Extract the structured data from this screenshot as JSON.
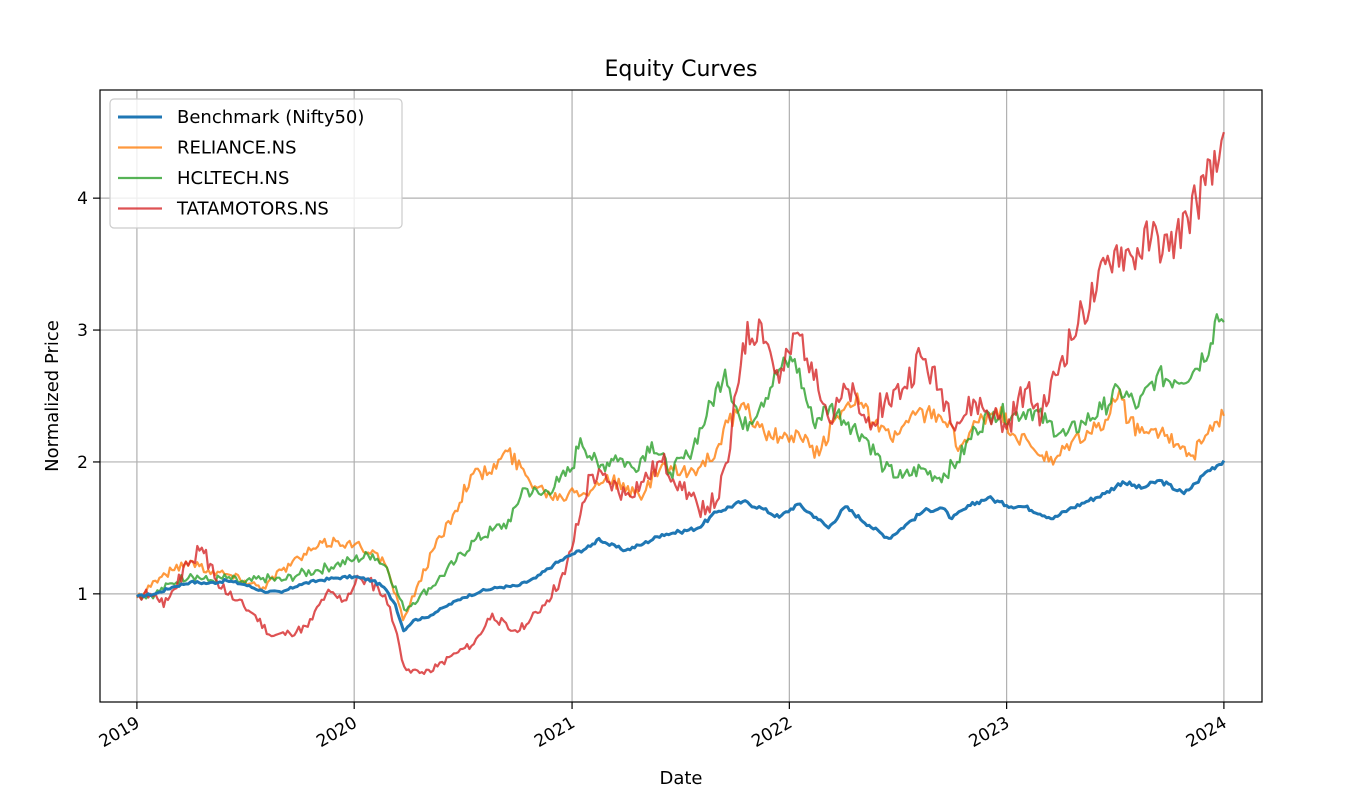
{
  "chart_data": {
    "type": "line",
    "title": "Equity Curves",
    "xlabel": "Date",
    "ylabel": "Normalized Price",
    "xlim": [
      "2018-10-31",
      "2024-03-05"
    ],
    "ylim": [
      0.18,
      4.82
    ],
    "x_ticks": [
      {
        "date": "2019-01-01",
        "label": "2019"
      },
      {
        "date": "2020-01-01",
        "label": "2020"
      },
      {
        "date": "2021-01-01",
        "label": "2021"
      },
      {
        "date": "2022-01-01",
        "label": "2022"
      },
      {
        "date": "2023-01-01",
        "label": "2023"
      },
      {
        "date": "2024-01-01",
        "label": "2024"
      }
    ],
    "y_ticks": [
      1,
      2,
      3,
      4
    ],
    "grid": true,
    "legend_position": "top-left",
    "series": [
      {
        "name": "Benchmark (Nifty50)",
        "color": "#1f77b4",
        "points": [
          [
            "2019-01-01",
            0.98
          ],
          [
            "2019-02-01",
            1.0
          ],
          [
            "2019-03-01",
            1.05
          ],
          [
            "2019-04-01",
            1.09
          ],
          [
            "2019-05-01",
            1.08
          ],
          [
            "2019-06-01",
            1.1
          ],
          [
            "2019-07-01",
            1.07
          ],
          [
            "2019-08-01",
            1.02
          ],
          [
            "2019-09-01",
            1.01
          ],
          [
            "2019-10-01",
            1.07
          ],
          [
            "2019-11-01",
            1.1
          ],
          [
            "2019-12-01",
            1.12
          ],
          [
            "2020-01-01",
            1.13
          ],
          [
            "2020-02-01",
            1.1
          ],
          [
            "2020-02-20",
            1.05
          ],
          [
            "2020-03-10",
            0.92
          ],
          [
            "2020-03-24",
            0.72
          ],
          [
            "2020-04-10",
            0.8
          ],
          [
            "2020-05-01",
            0.82
          ],
          [
            "2020-06-01",
            0.9
          ],
          [
            "2020-07-01",
            0.97
          ],
          [
            "2020-08-01",
            1.02
          ],
          [
            "2020-09-01",
            1.05
          ],
          [
            "2020-10-01",
            1.06
          ],
          [
            "2020-11-01",
            1.12
          ],
          [
            "2020-12-01",
            1.22
          ],
          [
            "2021-01-01",
            1.3
          ],
          [
            "2021-02-01",
            1.36
          ],
          [
            "2021-02-15",
            1.42
          ],
          [
            "2021-03-01",
            1.38
          ],
          [
            "2021-04-01",
            1.33
          ],
          [
            "2021-05-01",
            1.38
          ],
          [
            "2021-06-01",
            1.45
          ],
          [
            "2021-07-01",
            1.47
          ],
          [
            "2021-08-01",
            1.5
          ],
          [
            "2021-09-01",
            1.62
          ],
          [
            "2021-10-15",
            1.7
          ],
          [
            "2021-11-15",
            1.65
          ],
          [
            "2021-12-15",
            1.58
          ],
          [
            "2022-01-15",
            1.68
          ],
          [
            "2022-02-15",
            1.58
          ],
          [
            "2022-03-08",
            1.5
          ],
          [
            "2022-04-05",
            1.66
          ],
          [
            "2022-05-15",
            1.52
          ],
          [
            "2022-06-17",
            1.42
          ],
          [
            "2022-07-15",
            1.52
          ],
          [
            "2022-08-15",
            1.63
          ],
          [
            "2022-09-15",
            1.65
          ],
          [
            "2022-10-01",
            1.57
          ],
          [
            "2022-11-01",
            1.67
          ],
          [
            "2022-12-01",
            1.73
          ],
          [
            "2023-01-01",
            1.67
          ],
          [
            "2023-02-01",
            1.66
          ],
          [
            "2023-03-20",
            1.57
          ],
          [
            "2023-04-15",
            1.64
          ],
          [
            "2023-05-15",
            1.7
          ],
          [
            "2023-06-15",
            1.76
          ],
          [
            "2023-07-15",
            1.85
          ],
          [
            "2023-08-15",
            1.8
          ],
          [
            "2023-09-15",
            1.86
          ],
          [
            "2023-10-26",
            1.76
          ],
          [
            "2023-11-15",
            1.84
          ],
          [
            "2023-12-01",
            1.92
          ],
          [
            "2024-01-01",
            2.01
          ]
        ]
      },
      {
        "name": "RELIANCE.NS",
        "color": "#ff7f0e",
        "points": [
          [
            "2019-01-01",
            0.97
          ],
          [
            "2019-02-01",
            1.1
          ],
          [
            "2019-03-01",
            1.18
          ],
          [
            "2019-04-01",
            1.25
          ],
          [
            "2019-05-01",
            1.18
          ],
          [
            "2019-06-01",
            1.15
          ],
          [
            "2019-07-01",
            1.1
          ],
          [
            "2019-08-01",
            1.05
          ],
          [
            "2019-09-01",
            1.18
          ],
          [
            "2019-10-01",
            1.27
          ],
          [
            "2019-11-01",
            1.36
          ],
          [
            "2019-12-01",
            1.4
          ],
          [
            "2020-01-01",
            1.37
          ],
          [
            "2020-02-01",
            1.33
          ],
          [
            "2020-02-25",
            1.2
          ],
          [
            "2020-03-23",
            0.8
          ],
          [
            "2020-04-15",
            1.05
          ],
          [
            "2020-05-15",
            1.35
          ],
          [
            "2020-06-15",
            1.6
          ],
          [
            "2020-07-15",
            1.9
          ],
          [
            "2020-08-15",
            1.92
          ],
          [
            "2020-09-15",
            2.08
          ],
          [
            "2020-10-15",
            1.9
          ],
          [
            "2020-11-15",
            1.78
          ],
          [
            "2020-12-15",
            1.73
          ],
          [
            "2021-01-01",
            1.8
          ],
          [
            "2021-02-01",
            1.78
          ],
          [
            "2021-03-01",
            1.9
          ],
          [
            "2021-04-01",
            1.78
          ],
          [
            "2021-05-01",
            1.75
          ],
          [
            "2021-06-01",
            1.98
          ],
          [
            "2021-07-01",
            1.9
          ],
          [
            "2021-08-01",
            1.95
          ],
          [
            "2021-09-01",
            2.1
          ],
          [
            "2021-09-20",
            2.3
          ],
          [
            "2021-10-20",
            2.4
          ],
          [
            "2021-11-20",
            2.22
          ],
          [
            "2021-12-20",
            2.18
          ],
          [
            "2022-01-20",
            2.18
          ],
          [
            "2022-02-20",
            2.05
          ],
          [
            "2022-03-15",
            2.3
          ],
          [
            "2022-04-25",
            2.52
          ],
          [
            "2022-05-20",
            2.3
          ],
          [
            "2022-06-20",
            2.18
          ],
          [
            "2022-07-20",
            2.3
          ],
          [
            "2022-08-20",
            2.38
          ],
          [
            "2022-09-20",
            2.3
          ],
          [
            "2022-10-15",
            2.12
          ],
          [
            "2022-11-15",
            2.3
          ],
          [
            "2022-12-15",
            2.4
          ],
          [
            "2023-01-15",
            2.2
          ],
          [
            "2023-02-15",
            2.1
          ],
          [
            "2023-03-20",
            1.98
          ],
          [
            "2023-04-20",
            2.15
          ],
          [
            "2023-05-20",
            2.22
          ],
          [
            "2023-06-20",
            2.32
          ],
          [
            "2023-07-10",
            2.55
          ],
          [
            "2023-07-25",
            2.3
          ],
          [
            "2023-08-20",
            2.22
          ],
          [
            "2023-09-20",
            2.26
          ],
          [
            "2023-10-20",
            2.1
          ],
          [
            "2023-11-10",
            2.05
          ],
          [
            "2023-12-01",
            2.2
          ],
          [
            "2024-01-01",
            2.35
          ]
        ]
      },
      {
        "name": "HCLTECH.NS",
        "color": "#2ca02c",
        "points": [
          [
            "2019-01-01",
            0.98
          ],
          [
            "2019-02-01",
            1.0
          ],
          [
            "2019-03-01",
            1.08
          ],
          [
            "2019-04-01",
            1.15
          ],
          [
            "2019-05-01",
            1.1
          ],
          [
            "2019-06-01",
            1.12
          ],
          [
            "2019-07-01",
            1.08
          ],
          [
            "2019-08-01",
            1.12
          ],
          [
            "2019-09-01",
            1.1
          ],
          [
            "2019-10-01",
            1.15
          ],
          [
            "2019-11-01",
            1.18
          ],
          [
            "2019-12-01",
            1.22
          ],
          [
            "2020-01-01",
            1.26
          ],
          [
            "2020-02-01",
            1.3
          ],
          [
            "2020-02-25",
            1.2
          ],
          [
            "2020-03-25",
            0.88
          ],
          [
            "2020-04-20",
            0.98
          ],
          [
            "2020-05-20",
            1.1
          ],
          [
            "2020-06-20",
            1.25
          ],
          [
            "2020-07-20",
            1.4
          ],
          [
            "2020-08-20",
            1.48
          ],
          [
            "2020-09-20",
            1.55
          ],
          [
            "2020-10-10",
            1.8
          ],
          [
            "2020-11-10",
            1.75
          ],
          [
            "2020-12-10",
            1.85
          ],
          [
            "2021-01-01",
            1.95
          ],
          [
            "2021-01-15",
            2.18
          ],
          [
            "2021-02-15",
            1.95
          ],
          [
            "2021-03-15",
            2.05
          ],
          [
            "2021-04-15",
            1.95
          ],
          [
            "2021-05-15",
            2.15
          ],
          [
            "2021-06-15",
            1.92
          ],
          [
            "2021-07-15",
            2.05
          ],
          [
            "2021-08-15",
            2.35
          ],
          [
            "2021-09-15",
            2.7
          ],
          [
            "2021-10-15",
            2.25
          ],
          [
            "2021-11-15",
            2.45
          ],
          [
            "2021-12-15",
            2.7
          ],
          [
            "2022-01-10",
            2.78
          ],
          [
            "2022-02-10",
            2.3
          ],
          [
            "2022-03-10",
            2.42
          ],
          [
            "2022-04-10",
            2.3
          ],
          [
            "2022-05-10",
            2.18
          ],
          [
            "2022-06-10",
            1.95
          ],
          [
            "2022-07-10",
            1.88
          ],
          [
            "2022-08-10",
            1.95
          ],
          [
            "2022-09-10",
            1.88
          ],
          [
            "2022-10-10",
            2.0
          ],
          [
            "2022-11-10",
            2.25
          ],
          [
            "2022-12-10",
            2.38
          ],
          [
            "2023-01-10",
            2.35
          ],
          [
            "2023-02-10",
            2.4
          ],
          [
            "2023-03-10",
            2.3
          ],
          [
            "2023-04-10",
            2.2
          ],
          [
            "2023-05-10",
            2.3
          ],
          [
            "2023-06-10",
            2.4
          ],
          [
            "2023-07-10",
            2.55
          ],
          [
            "2023-08-10",
            2.42
          ],
          [
            "2023-09-10",
            2.65
          ],
          [
            "2023-10-10",
            2.62
          ],
          [
            "2023-11-10",
            2.68
          ],
          [
            "2023-12-10",
            2.9
          ],
          [
            "2023-12-20",
            3.12
          ],
          [
            "2024-01-01",
            3.06
          ]
        ]
      },
      {
        "name": "TATAMOTORS.NS",
        "color": "#d62728",
        "points": [
          [
            "2019-01-01",
            0.98
          ],
          [
            "2019-02-01",
            1.0
          ],
          [
            "2019-02-15",
            0.9
          ],
          [
            "2019-03-01",
            1.02
          ],
          [
            "2019-04-01",
            1.25
          ],
          [
            "2019-04-20",
            1.35
          ],
          [
            "2019-05-15",
            1.1
          ],
          [
            "2019-06-15",
            0.95
          ],
          [
            "2019-07-15",
            0.85
          ],
          [
            "2019-08-15",
            0.68
          ],
          [
            "2019-09-15",
            0.7
          ],
          [
            "2019-10-15",
            0.75
          ],
          [
            "2019-11-15",
            1.0
          ],
          [
            "2019-12-15",
            0.95
          ],
          [
            "2020-01-10",
            1.12
          ],
          [
            "2020-02-10",
            1.05
          ],
          [
            "2020-03-01",
            0.9
          ],
          [
            "2020-03-25",
            0.45
          ],
          [
            "2020-04-20",
            0.4
          ],
          [
            "2020-05-20",
            0.45
          ],
          [
            "2020-06-20",
            0.55
          ],
          [
            "2020-07-20",
            0.62
          ],
          [
            "2020-08-20",
            0.85
          ],
          [
            "2020-09-20",
            0.72
          ],
          [
            "2020-10-20",
            0.78
          ],
          [
            "2020-11-20",
            0.95
          ],
          [
            "2020-12-20",
            1.15
          ],
          [
            "2021-01-15",
            1.6
          ],
          [
            "2021-02-01",
            1.9
          ],
          [
            "2021-03-01",
            1.85
          ],
          [
            "2021-04-01",
            1.75
          ],
          [
            "2021-05-01",
            1.85
          ],
          [
            "2021-06-01",
            2.0
          ],
          [
            "2021-07-01",
            1.85
          ],
          [
            "2021-08-01",
            1.65
          ],
          [
            "2021-09-01",
            1.7
          ],
          [
            "2021-09-20",
            2.0
          ],
          [
            "2021-10-15",
            2.9
          ],
          [
            "2021-11-15",
            3.05
          ],
          [
            "2021-12-15",
            2.6
          ],
          [
            "2022-01-15",
            2.98
          ],
          [
            "2022-02-15",
            2.7
          ],
          [
            "2022-03-10",
            2.3
          ],
          [
            "2022-04-10",
            2.55
          ],
          [
            "2022-05-10",
            2.3
          ],
          [
            "2022-06-10",
            2.45
          ],
          [
            "2022-07-10",
            2.55
          ],
          [
            "2022-08-10",
            2.8
          ],
          [
            "2022-09-10",
            2.55
          ],
          [
            "2022-10-10",
            2.3
          ],
          [
            "2022-11-10",
            2.45
          ],
          [
            "2022-12-10",
            2.35
          ],
          [
            "2023-01-01",
            2.25
          ],
          [
            "2023-02-01",
            2.55
          ],
          [
            "2023-03-01",
            2.35
          ],
          [
            "2023-04-01",
            2.75
          ],
          [
            "2023-05-01",
            3.05
          ],
          [
            "2023-06-01",
            3.3
          ],
          [
            "2023-07-01",
            3.6
          ],
          [
            "2023-08-01",
            3.55
          ],
          [
            "2023-09-01",
            3.7
          ],
          [
            "2023-10-01",
            3.6
          ],
          [
            "2023-11-01",
            3.85
          ],
          [
            "2023-12-01",
            4.1
          ],
          [
            "2023-12-20",
            4.2
          ],
          [
            "2024-01-01",
            4.5
          ]
        ]
      }
    ]
  }
}
